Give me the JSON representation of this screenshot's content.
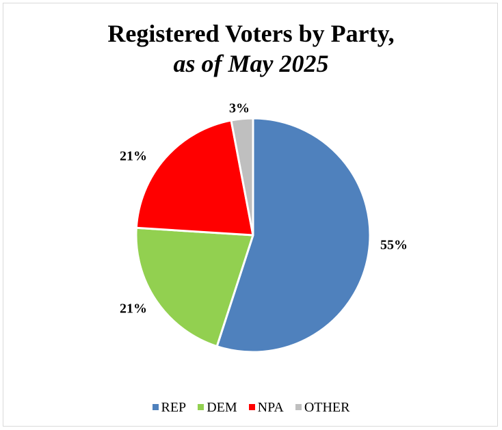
{
  "chart_data": {
    "type": "pie",
    "title": "Registered Voters by Party,",
    "subtitle": "as of May 2025",
    "slices": [
      {
        "name": "REP",
        "value": 55,
        "label": "55%",
        "color": "#4f81bd"
      },
      {
        "name": "DEM",
        "value": 21,
        "label": "21%",
        "color": "#92d050"
      },
      {
        "name": "NPA",
        "value": 21,
        "label": "21%",
        "color": "#ff0000"
      },
      {
        "name": "OTHER",
        "value": 3,
        "label": "3%",
        "color": "#bfbfbf"
      }
    ],
    "legend": {
      "position": "bottom",
      "entries": [
        "REP",
        "DEM",
        "NPA",
        "OTHER"
      ]
    }
  }
}
